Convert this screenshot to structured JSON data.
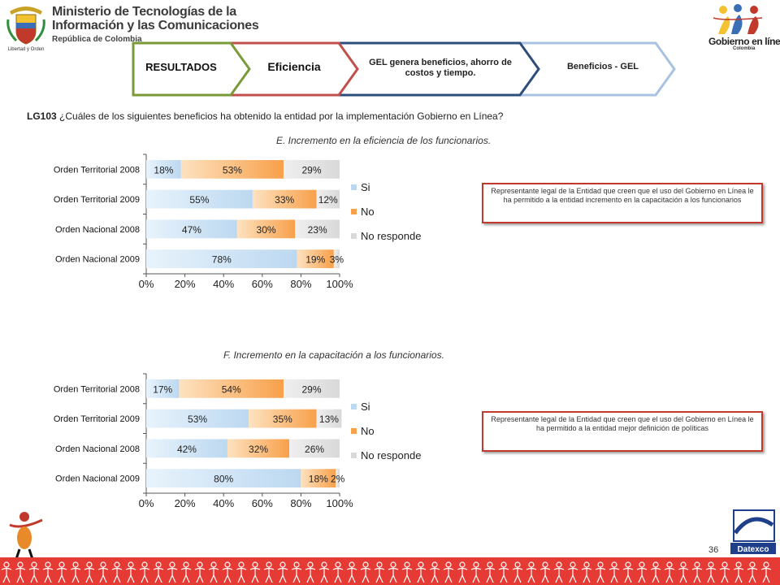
{
  "header": {
    "ministry_line1": "Ministerio de Tecnologías de la",
    "ministry_line2": "Información y las Comunicaciones",
    "ministry_line3": "República de Colombia",
    "seal_caption": "Libertad y Orden",
    "gel_title": "Gobierno en línea",
    "gel_subtitle": "Colombia"
  },
  "tabs": [
    {
      "label": "RESULTADOS",
      "color": "#7a9a3a"
    },
    {
      "label": "Eficiencia",
      "color": "#c0504d"
    },
    {
      "label": "GEL genera beneficios, ahorro de costos y tiempo.",
      "color": "#2e4d7b"
    },
    {
      "label": "Beneficios - GEL",
      "color": "#a8c2e0"
    }
  ],
  "question": {
    "code": "LG103",
    "text": "¿Cuáles de los siguientes beneficios ha obtenido la entidad por la implementación Gobierno en Línea?"
  },
  "colors": {
    "si": "#bcd8f0",
    "no": "#f8a04a",
    "no_responde": "#d9d9d9",
    "box_border": "#c0392b"
  },
  "chart_data": [
    {
      "type": "bar",
      "orientation": "horizontal",
      "stacked": true,
      "title": "E. Incremento en la eficiencia de los funcionarios.",
      "categories": [
        "Orden Territorial 2008",
        "Orden Territorial 2009",
        "Orden Nacional 2008",
        "Orden Nacional 2009"
      ],
      "series": [
        {
          "name": "Si",
          "values": [
            18,
            55,
            47,
            78
          ],
          "labels": [
            "18%",
            "55%",
            "47%",
            "78%"
          ]
        },
        {
          "name": "No",
          "values": [
            53,
            33,
            30,
            19
          ],
          "labels": [
            "53%",
            "33%",
            "30%",
            "19%"
          ]
        },
        {
          "name": "No responde",
          "values": [
            29,
            12,
            23,
            3
          ],
          "labels": [
            "29%",
            "12%",
            "23%",
            "3%"
          ]
        }
      ],
      "xlim": [
        0,
        100
      ],
      "xticks": [
        "0%",
        "20%",
        "40%",
        "60%",
        "80%",
        "100%"
      ],
      "legend": "right",
      "note": "Representante legal de la Entidad que creen que el uso del Gobierno en Línea le ha permitido a la entidad incremento en la capacitación a los funcionarios"
    },
    {
      "type": "bar",
      "orientation": "horizontal",
      "stacked": true,
      "title": "F. Incremento en la capacitación a los funcionarios.",
      "categories": [
        "Orden Territorial 2008",
        "Orden Territorial 2009",
        "Orden Nacional 2008",
        "Orden Nacional 2009"
      ],
      "series": [
        {
          "name": "Si",
          "values": [
            17,
            53,
            42,
            80
          ],
          "labels": [
            "17%",
            "53%",
            "42%",
            "80%"
          ]
        },
        {
          "name": "No",
          "values": [
            54,
            35,
            32,
            18
          ],
          "labels": [
            "54%",
            "35%",
            "32%",
            "18%"
          ]
        },
        {
          "name": "No responde",
          "values": [
            29,
            13,
            26,
            2
          ],
          "labels": [
            "29%",
            "13%",
            "26%",
            "2%"
          ]
        }
      ],
      "xlim": [
        0,
        100
      ],
      "xticks": [
        "0%",
        "20%",
        "40%",
        "60%",
        "80%",
        "100%"
      ],
      "legend": "right",
      "note": "Representante legal de la Entidad que creen que el uso del Gobierno en Línea le ha permitido a la entidad mejor definición de políticas"
    }
  ],
  "page_number": "36",
  "footer": {
    "datexco": "Datexco"
  }
}
